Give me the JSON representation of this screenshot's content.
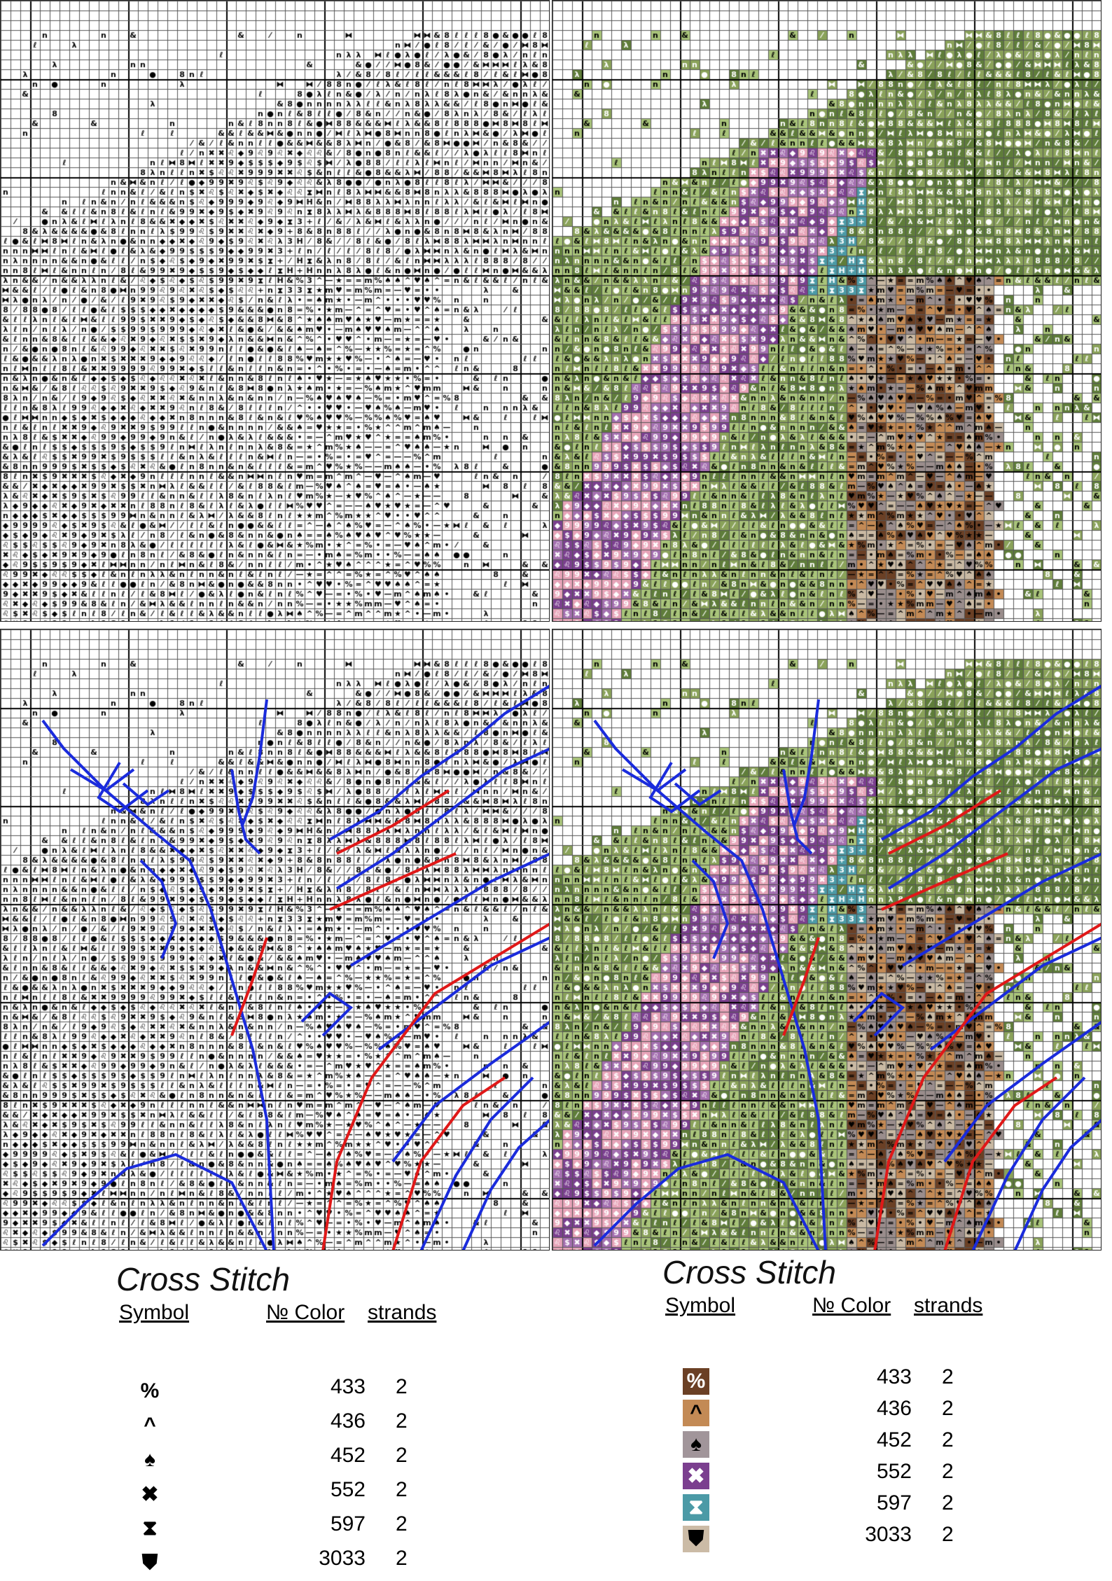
{
  "charts": {
    "panels": [
      {
        "id": "symbols",
        "colored": false,
        "outlined": false
      },
      {
        "id": "colored",
        "colored": true,
        "outlined": false
      },
      {
        "id": "symbols-backstitch",
        "colored": false,
        "outlined": true
      },
      {
        "id": "colored-backstitch",
        "colored": true,
        "outlined": true
      }
    ],
    "symbol_set": {
      "purple": [
        "✖",
        "$",
        "9",
        "◆",
        "♌"
      ],
      "teal": [
        "H",
        "+",
        "3",
        "⧗"
      ],
      "green": [
        "&",
        "8",
        "ℓ",
        "●",
        "λ",
        "⁄",
        "⧓",
        "n"
      ],
      "brown": [
        "%",
        "^",
        "★",
        "m",
        "♠",
        "•",
        "—",
        "♥",
        "="
      ],
      "lime": [
        "n",
        "ℓ",
        "&"
      ]
    },
    "colors": {
      "purple": "#7b3f8f",
      "purple_light": "#a46fb0",
      "pink": "#e7a3b8",
      "teal": "#4b9aa6",
      "green": "#5f7d3a",
      "green_mid": "#8aa25a",
      "lime": "#a9c47a",
      "brown": "#6b4025",
      "tan": "#c38a55",
      "gray": "#9a8d8c",
      "beige": "#c9b9a3",
      "white": "#ffffff",
      "backstitch_blue": "#1a2bdc",
      "backstitch_red": "#e01818"
    }
  },
  "legend_left": {
    "title": "Cross Stitch",
    "headers": {
      "symbol": "Symbol",
      "color": "№ Color",
      "strands": "strands"
    },
    "rows": [
      {
        "symbol": "%",
        "color": "433",
        "strands": "2"
      },
      {
        "symbol": "^",
        "color": "436",
        "strands": "2"
      },
      {
        "symbol": "♠",
        "color": "452",
        "strands": "2"
      },
      {
        "symbol": "✖",
        "color": "552",
        "strands": "2"
      },
      {
        "symbol": "⧗",
        "color": "597",
        "strands": "2"
      },
      {
        "symbol": "⛊",
        "color": "3033",
        "strands": "2"
      }
    ]
  },
  "legend_right": {
    "title": "Cross Stitch",
    "headers": {
      "symbol": "Symbol",
      "color": "№ Color",
      "strands": "strands"
    },
    "rows": [
      {
        "symbol": "%",
        "color": "433",
        "strands": "2",
        "swatch": "#6b4025",
        "ink": "#ffffff"
      },
      {
        "symbol": "^",
        "color": "436",
        "strands": "2",
        "swatch": "#c38a55",
        "ink": "#000000"
      },
      {
        "symbol": "♠",
        "color": "452",
        "strands": "2",
        "swatch": "#a1959a",
        "ink": "#000000"
      },
      {
        "symbol": "✖",
        "color": "552",
        "strands": "2",
        "swatch": "#7b3f8f",
        "ink": "#ffffff"
      },
      {
        "symbol": "⧗",
        "color": "597",
        "strands": "2",
        "swatch": "#4b9aa6",
        "ink": "#ffffff"
      },
      {
        "symbol": "⛊",
        "color": "3033",
        "strands": "2",
        "swatch": "#cbbba6",
        "ink": "#000000"
      }
    ]
  }
}
